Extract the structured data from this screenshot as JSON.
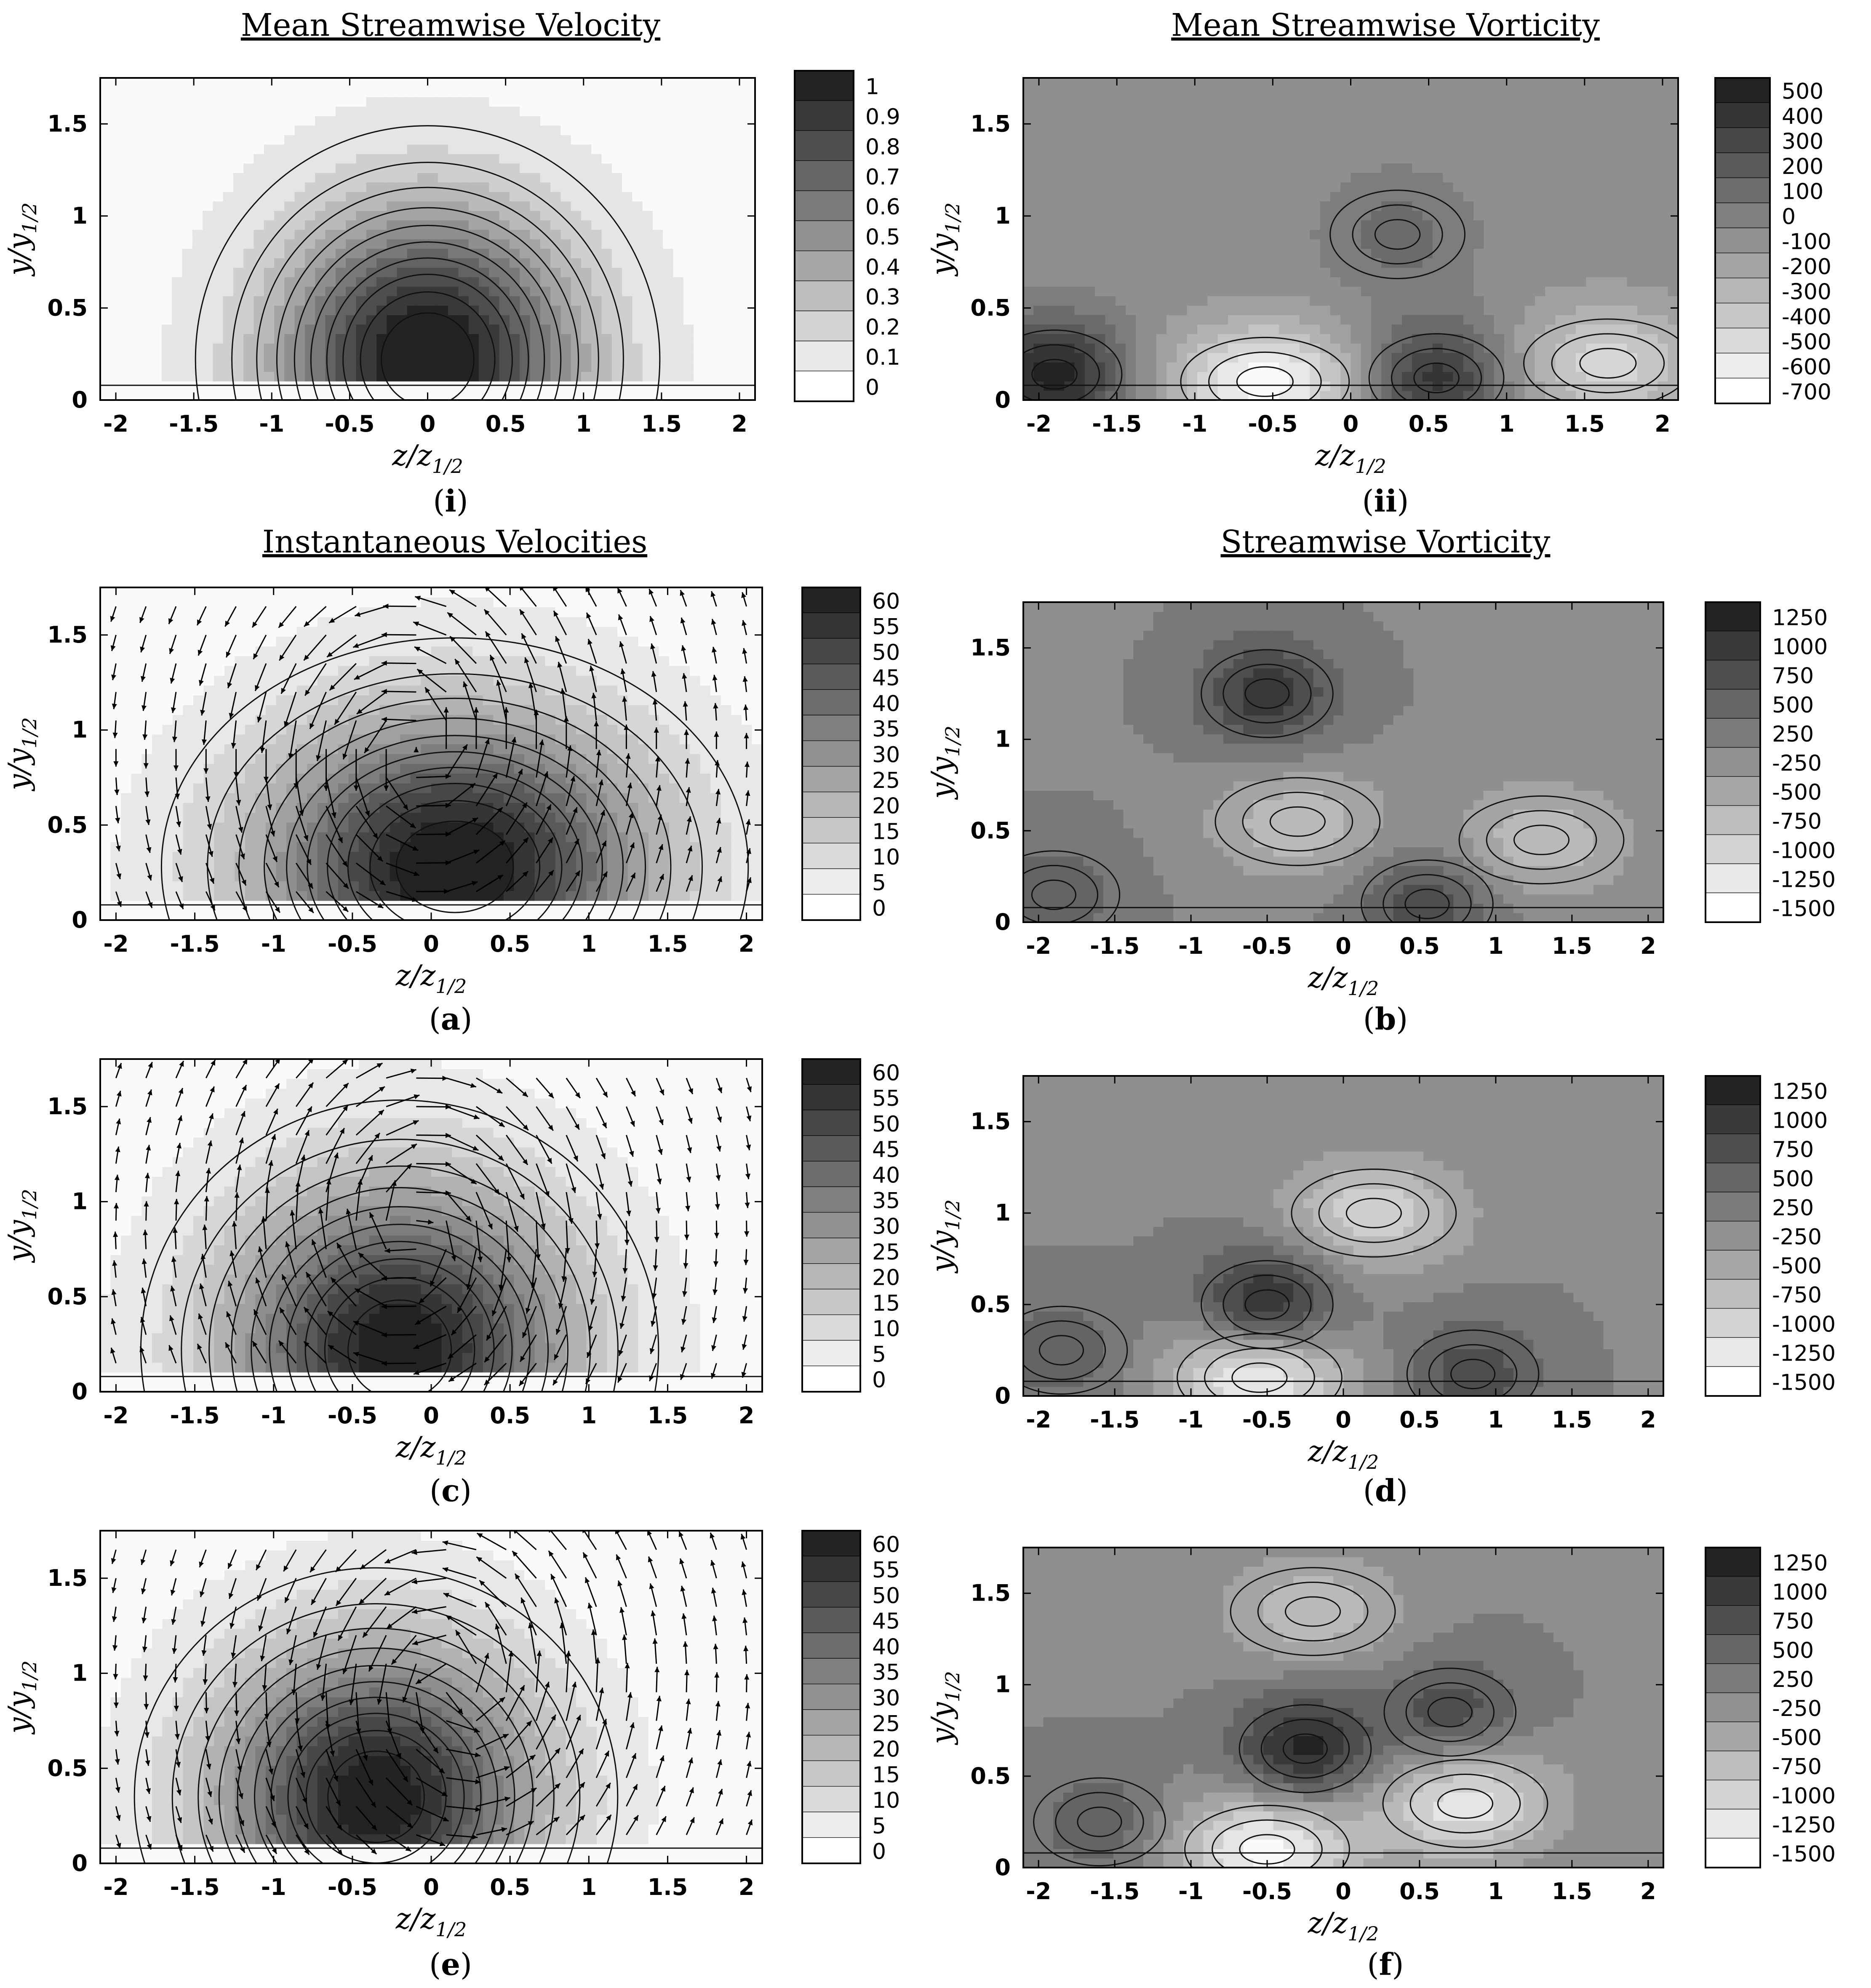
{
  "figure": {
    "panels": [
      {
        "id": "i",
        "title": "Mean Streamwise Velocity",
        "label_open": "(",
        "label_letter": "i",
        "label_close": ")",
        "xlabel_main": "z/z",
        "xlabel_sub": "1/2",
        "ylabel_main": "y/y",
        "ylabel_sub": "1/2",
        "xticks": [
          "-2",
          "-1.5",
          "-1",
          "-0.5",
          "0",
          "0.5",
          "1",
          "1.5",
          "2"
        ],
        "yticks": [
          "0",
          "0.5",
          "1",
          "1.5"
        ],
        "colorbar_levels": [
          "1",
          "0.9",
          "0.8",
          "0.7",
          "0.6",
          "0.5",
          "0.4",
          "0.3",
          "0.2",
          "0.1",
          "0"
        ],
        "vectors": false
      },
      {
        "id": "ii",
        "title": "Mean Streamwise Vorticity",
        "label_open": "(",
        "label_letter": "ii",
        "label_close": ")",
        "xlabel_main": "z/z",
        "xlabel_sub": "1/2",
        "ylabel_main": "y/y",
        "ylabel_sub": "1/2",
        "xticks": [
          "-2",
          "-1.5",
          "-1",
          "-0.5",
          "0",
          "0.5",
          "1",
          "1.5",
          "2"
        ],
        "yticks": [
          "0",
          "0.5",
          "1",
          "1.5"
        ],
        "colorbar_levels": [
          "500",
          "400",
          "300",
          "200",
          "100",
          "0",
          "-100",
          "-200",
          "-300",
          "-400",
          "-500",
          "-600",
          "-700"
        ],
        "vectors": false
      },
      {
        "id": "a",
        "title": "Instantaneous Velocities",
        "label_open": "(",
        "label_letter": "a",
        "label_close": ")",
        "xlabel_main": "z/z",
        "xlabel_sub": "1/2",
        "ylabel_main": "y/y",
        "ylabel_sub": "1/2",
        "xticks": [
          "-2",
          "-1.5",
          "-1",
          "-0.5",
          "0",
          "0.5",
          "1",
          "1.5",
          "2"
        ],
        "yticks": [
          "0",
          "0.5",
          "1",
          "1.5"
        ],
        "colorbar_levels": [
          "60",
          "55",
          "50",
          "45",
          "40",
          "35",
          "30",
          "25",
          "20",
          "15",
          "10",
          "5",
          "0"
        ],
        "vectors": true
      },
      {
        "id": "b",
        "title": "Streamwise Vorticity",
        "label_open": "(",
        "label_letter": "b",
        "label_close": ")",
        "xlabel_main": "z/z",
        "xlabel_sub": "1/2",
        "ylabel_main": "y/y",
        "ylabel_sub": "1/2",
        "xticks": [
          "-2",
          "-1.5",
          "-1",
          "-0.5",
          "0",
          "0.5",
          "1",
          "1.5",
          "2"
        ],
        "yticks": [
          "0",
          "0.5",
          "1",
          "1.5"
        ],
        "colorbar_levels": [
          "1250",
          "1000",
          "750",
          "500",
          "250",
          "-250",
          "-500",
          "-750",
          "-1000",
          "-1250",
          "-1500"
        ],
        "vectors": false
      },
      {
        "id": "c",
        "title": "",
        "label_open": "(",
        "label_letter": "c",
        "label_close": ")",
        "xlabel_main": "z/z",
        "xlabel_sub": "1/2",
        "ylabel_main": "y/y",
        "ylabel_sub": "1/2",
        "xticks": [
          "-2",
          "-1.5",
          "-1",
          "-0.5",
          "0",
          "0.5",
          "1",
          "1.5",
          "2"
        ],
        "yticks": [
          "0",
          "0.5",
          "1",
          "1.5"
        ],
        "colorbar_levels": [
          "60",
          "55",
          "50",
          "45",
          "40",
          "35",
          "30",
          "25",
          "20",
          "15",
          "10",
          "5",
          "0"
        ],
        "vectors": true
      },
      {
        "id": "d",
        "title": "",
        "label_open": "(",
        "label_letter": "d",
        "label_close": ")",
        "xlabel_main": "z/z",
        "xlabel_sub": "1/2",
        "ylabel_main": "y/y",
        "ylabel_sub": "1/2",
        "xticks": [
          "-2",
          "-1.5",
          "-1",
          "-0.5",
          "0",
          "0.5",
          "1",
          "1.5",
          "2"
        ],
        "yticks": [
          "0",
          "0.5",
          "1",
          "1.5"
        ],
        "colorbar_levels": [
          "1250",
          "1000",
          "750",
          "500",
          "250",
          "-250",
          "-500",
          "-750",
          "-1000",
          "-1250",
          "-1500"
        ],
        "vectors": false
      },
      {
        "id": "e",
        "title": "",
        "label_open": "(",
        "label_letter": "e",
        "label_close": ")",
        "xlabel_main": "z/z",
        "xlabel_sub": "1/2",
        "ylabel_main": "y/y",
        "ylabel_sub": "1/2",
        "xticks": [
          "-2",
          "-1.5",
          "-1",
          "-0.5",
          "0",
          "0.5",
          "1",
          "1.5",
          "2"
        ],
        "yticks": [
          "0",
          "0.5",
          "1",
          "1.5"
        ],
        "colorbar_levels": [
          "60",
          "55",
          "50",
          "45",
          "40",
          "35",
          "30",
          "25",
          "20",
          "15",
          "10",
          "5",
          "0"
        ],
        "vectors": true
      },
      {
        "id": "f",
        "title": "",
        "label_open": "(",
        "label_letter": "f",
        "label_close": ")",
        "xlabel_main": "z/z",
        "xlabel_sub": "1/2",
        "ylabel_main": "y/y",
        "ylabel_sub": "1/2",
        "xticks": [
          "-2",
          "-1.5",
          "-1",
          "-0.5",
          "0",
          "0.5",
          "1",
          "1.5",
          "2"
        ],
        "yticks": [
          "0",
          "0.5",
          "1",
          "1.5"
        ],
        "colorbar_levels": [
          "1250",
          "1000",
          "750",
          "500",
          "250",
          "-250",
          "-500",
          "-750",
          "-1000",
          "-1250",
          "-1500"
        ],
        "vectors": false
      }
    ]
  },
  "chart_data": [
    {
      "panel": "i",
      "type": "heatmap",
      "subtype": "filled-contour",
      "title": "Mean Streamwise Velocity",
      "xlabel": "z/z_1/2",
      "ylabel": "y/y_1/2",
      "xlim": [
        -2.1,
        2.1
      ],
      "ylim": [
        0,
        1.75
      ],
      "colorbar": [
        1,
        0.9,
        0.8,
        0.7,
        0.6,
        0.5,
        0.4,
        0.3,
        0.2,
        0.1,
        0
      ],
      "field": {
        "kind": "gaussian",
        "z0": 0.0,
        "y0": 0.22,
        "amp": 1.08,
        "sz": 0.68,
        "sy": 0.58,
        "wall_y": 0.08
      },
      "color_map": "grayscale, dark = high"
    },
    {
      "panel": "ii",
      "type": "heatmap",
      "subtype": "filled-contour",
      "title": "Mean Streamwise Vorticity",
      "xlabel": "z/z_1/2",
      "ylabel": "y/y_1/2",
      "xlim": [
        -2.1,
        2.1
      ],
      "ylim": [
        0,
        1.75
      ],
      "colorbar": [
        500,
        400,
        300,
        200,
        100,
        0,
        -100,
        -200,
        -300,
        -400,
        -500,
        -600,
        -700
      ],
      "features": [
        {
          "z": -1.9,
          "y": 0.14,
          "value": 500,
          "sign": "positive"
        },
        {
          "z": 0.55,
          "y": 0.12,
          "value": 400,
          "sign": "positive"
        },
        {
          "z": 0.3,
          "y": 0.9,
          "value": 100,
          "sign": "positive"
        },
        {
          "z": -0.55,
          "y": 0.1,
          "value": -700,
          "sign": "negative"
        },
        {
          "z": 1.65,
          "y": 0.2,
          "value": -500,
          "sign": "negative"
        }
      ],
      "color_map": "grayscale, dark = high"
    },
    {
      "panel": "a",
      "type": "heatmap",
      "subtype": "filled-contour with velocity vectors",
      "title": "Instantaneous Velocities",
      "xlabel": "z/z_1/2",
      "ylabel": "y/y_1/2",
      "xlim": [
        -2.1,
        2.1
      ],
      "ylim": [
        0,
        1.75
      ],
      "colorbar": [
        60,
        55,
        50,
        45,
        40,
        35,
        30,
        25,
        20,
        15,
        10,
        5,
        0
      ],
      "field": {
        "kind": "gaussian",
        "z0": 0.15,
        "y0": 0.28,
        "amp": 64,
        "sz": 0.85,
        "sy": 0.55,
        "wall_y": 0.08
      },
      "vortex": {
        "z": -0.1,
        "y": 0.9,
        "strength": 1.0
      }
    },
    {
      "panel": "b",
      "type": "heatmap",
      "subtype": "filled-contour",
      "title": "Streamwise Vorticity",
      "xlabel": "z/z_1/2",
      "ylabel": "y/y_1/2",
      "xlim": [
        -2.1,
        2.1
      ],
      "ylim": [
        0,
        1.75
      ],
      "colorbar": [
        1250,
        1000,
        750,
        500,
        250,
        -250,
        -500,
        -750,
        -1000,
        -1250,
        -1500
      ],
      "features": [
        {
          "z": -0.5,
          "y": 1.25,
          "value": 1000,
          "sign": "positive"
        },
        {
          "z": -1.9,
          "y": 0.15,
          "value": 500,
          "sign": "positive"
        },
        {
          "z": 0.55,
          "y": 0.1,
          "value": 750,
          "sign": "positive"
        },
        {
          "z": -0.3,
          "y": 0.55,
          "value": -750,
          "sign": "negative"
        },
        {
          "z": 1.3,
          "y": 0.45,
          "value": -750,
          "sign": "negative"
        }
      ]
    },
    {
      "panel": "c",
      "type": "heatmap",
      "subtype": "filled-contour with velocity vectors",
      "xlabel": "z/z_1/2",
      "ylabel": "y/y_1/2",
      "xlim": [
        -2.1,
        2.1
      ],
      "ylim": [
        0,
        1.75
      ],
      "colorbar": [
        60,
        55,
        50,
        45,
        40,
        35,
        30,
        25,
        20,
        15,
        10,
        5,
        0
      ],
      "field": {
        "kind": "gaussian",
        "z0": -0.2,
        "y0": 0.22,
        "amp": 62,
        "sz": 0.75,
        "sy": 0.6,
        "wall_y": 0.08
      },
      "vortex": {
        "z": -0.1,
        "y": 0.85,
        "strength": -1.0
      }
    },
    {
      "panel": "d",
      "type": "heatmap",
      "subtype": "filled-contour",
      "xlabel": "z/z_1/2",
      "ylabel": "y/y_1/2",
      "xlim": [
        -2.1,
        2.1
      ],
      "ylim": [
        0,
        1.75
      ],
      "colorbar": [
        1250,
        1000,
        750,
        500,
        250,
        -250,
        -500,
        -750,
        -1000,
        -1250,
        -1500
      ],
      "features": [
        {
          "z": -0.5,
          "y": 0.5,
          "value": 1250,
          "sign": "positive"
        },
        {
          "z": 0.85,
          "y": 0.12,
          "value": 750,
          "sign": "positive"
        },
        {
          "z": -1.85,
          "y": 0.25,
          "value": 500,
          "sign": "positive"
        },
        {
          "z": 0.2,
          "y": 1.0,
          "value": -1000,
          "sign": "negative"
        },
        {
          "z": -0.55,
          "y": 0.1,
          "value": -1500,
          "sign": "negative"
        }
      ]
    },
    {
      "panel": "e",
      "type": "heatmap",
      "subtype": "filled-contour with velocity vectors",
      "xlabel": "z/z_1/2",
      "ylabel": "y/y_1/2",
      "xlim": [
        -2.1,
        2.1
      ],
      "ylim": [
        0,
        1.75
      ],
      "colorbar": [
        60,
        55,
        50,
        45,
        40,
        35,
        30,
        25,
        20,
        15,
        10,
        5,
        0
      ],
      "field": {
        "kind": "gaussian",
        "z0": -0.35,
        "y0": 0.35,
        "amp": 62,
        "sz": 0.7,
        "sy": 0.55,
        "wall_y": 0.08
      },
      "vortex": {
        "z": 0.15,
        "y": 0.95,
        "strength": 1.0
      }
    },
    {
      "panel": "f",
      "type": "heatmap",
      "subtype": "filled-contour",
      "xlabel": "z/z_1/2",
      "ylabel": "y/y_1/2",
      "xlim": [
        -2.1,
        2.1
      ],
      "ylim": [
        0,
        1.75
      ],
      "colorbar": [
        1250,
        1000,
        750,
        500,
        250,
        -250,
        -500,
        -750,
        -1000,
        -1250,
        -1500
      ],
      "features": [
        {
          "z": -0.25,
          "y": 0.65,
          "value": 1250,
          "sign": "positive"
        },
        {
          "z": 0.7,
          "y": 0.85,
          "value": 750,
          "sign": "positive"
        },
        {
          "z": -1.6,
          "y": 0.25,
          "value": 500,
          "sign": "positive"
        },
        {
          "z": -0.2,
          "y": 1.4,
          "value": -750,
          "sign": "negative"
        },
        {
          "z": 0.8,
          "y": 0.35,
          "value": -1250,
          "sign": "negative"
        },
        {
          "z": -0.5,
          "y": 0.1,
          "value": -1500,
          "sign": "negative"
        }
      ]
    }
  ]
}
